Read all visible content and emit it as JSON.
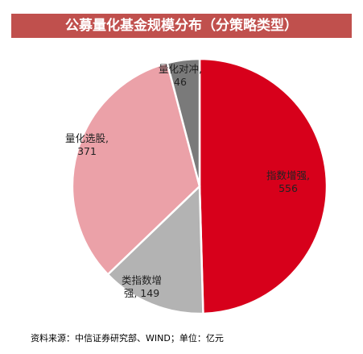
{
  "chart_data": {
    "type": "pie",
    "title": "公募量化基金规模分布（分策略类型）",
    "slices": [
      {
        "name": "指数增强",
        "value": 556,
        "color": "#d7001b",
        "label_lines": [
          "指数增强,",
          "556"
        ]
      },
      {
        "name": "类指数增强",
        "value": 149,
        "color": "#b3b3b3",
        "label_lines": [
          "类指数增",
          "强, 149"
        ]
      },
      {
        "name": "量化选股",
        "value": 371,
        "color": "#eba1a8",
        "label_lines": [
          "量化选股,",
          "371"
        ]
      },
      {
        "name": "量化对冲",
        "value": 46,
        "color": "#7a7a7a",
        "label_lines": [
          "量化对冲,",
          "46"
        ]
      }
    ],
    "start_angle": "12 o'clock",
    "direction": "clockwise",
    "legend": "none"
  },
  "source_note": "资料来源：中信证券研究部、WIND；单位：亿元"
}
